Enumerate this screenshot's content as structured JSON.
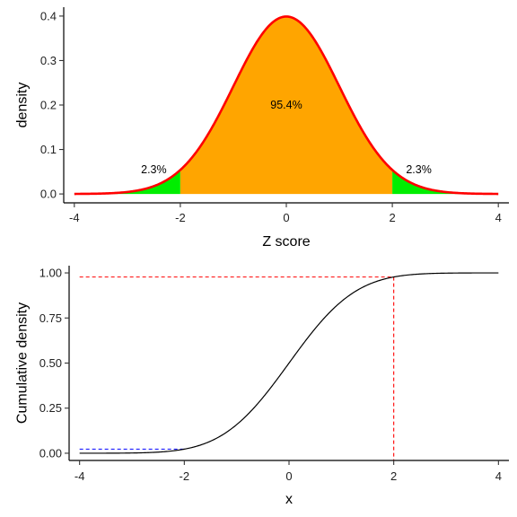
{
  "chart_data": [
    {
      "type": "area",
      "xlabel": "Z score",
      "ylabel": "density",
      "xlim": [
        -4.2,
        4.2
      ],
      "ylim": [
        -0.02,
        0.42
      ],
      "xticks": [
        "-4",
        "-2",
        "0",
        "2",
        "4"
      ],
      "yticks": [
        "0.0",
        "0.1",
        "0.2",
        "0.3",
        "0.4"
      ],
      "xtick_values": [
        -4,
        -2,
        0,
        2,
        4
      ],
      "ytick_values": [
        0,
        0.1,
        0.2,
        0.3,
        0.4
      ],
      "curve": {
        "function": "normal density",
        "mean": 0,
        "sd": 1,
        "x_range": [
          -4,
          4
        ],
        "color": "#ff0000"
      },
      "regions": [
        {
          "from": -4,
          "to": -2,
          "fill": "#00ee00"
        },
        {
          "from": -2,
          "to": 2,
          "fill": "#ffa500"
        },
        {
          "from": 2,
          "to": 4,
          "fill": "#00ee00"
        }
      ],
      "annotations": [
        {
          "text": "2.3%",
          "x": -2.5,
          "y": 0.055
        },
        {
          "text": "95.4%",
          "x": 0,
          "y": 0.2
        },
        {
          "text": "2.3%",
          "x": 2.5,
          "y": 0.055
        }
      ],
      "grid": false
    },
    {
      "type": "line",
      "xlabel": "x",
      "ylabel": "Cumulative density",
      "xlim": [
        -4.2,
        4.2
      ],
      "ylim": [
        -0.04,
        1.04
      ],
      "xticks": [
        "-4",
        "-2",
        "0",
        "2",
        "4"
      ],
      "yticks": [
        "0.00",
        "0.25",
        "0.50",
        "0.75",
        "1.00"
      ],
      "xtick_values": [
        -4,
        -2,
        0,
        2,
        4
      ],
      "ytick_values": [
        0,
        0.25,
        0.5,
        0.75,
        1.0
      ],
      "curve": {
        "function": "normal cumulative distribution",
        "mean": 0,
        "sd": 1,
        "x_range": [
          -4,
          4
        ],
        "color": "#000000"
      },
      "reference_lines": [
        {
          "color": "#0000ff",
          "points": [
            [
              -4,
              0.0228
            ],
            [
              -2,
              0.0228
            ]
          ]
        },
        {
          "color": "#ff0000",
          "points": [
            [
              -4,
              0.9772
            ],
            [
              2,
              0.9772
            ],
            [
              2,
              -0.04
            ]
          ]
        }
      ],
      "grid": false
    }
  ]
}
